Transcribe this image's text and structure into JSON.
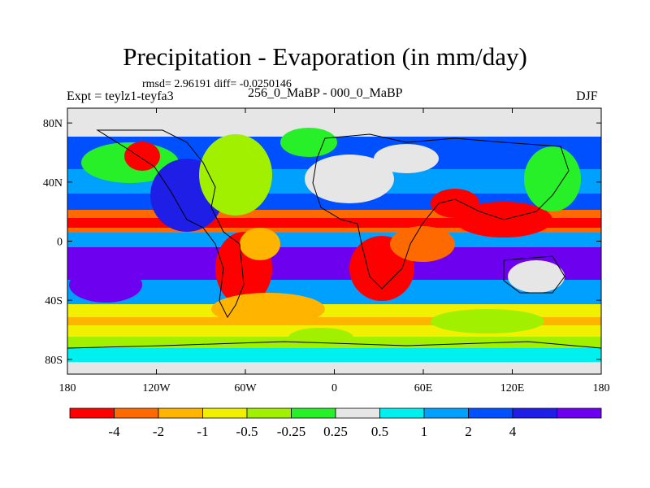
{
  "title": "Precipitation - Evaporation (in mm/day)",
  "stats": "rmsd= 2.96191 diff= -0.0250146",
  "left_label": "Expt = teylz1-teyfa3",
  "center_label": "256_0_MaBP - 000_0_MaBP",
  "right_label": "DJF",
  "y_ticks": [
    {
      "label": "80N",
      "lat": 80
    },
    {
      "label": "40N",
      "lat": 40
    },
    {
      "label": "0",
      "lat": 0
    },
    {
      "label": "40S",
      "lat": -40
    },
    {
      "label": "80S",
      "lat": -80
    }
  ],
  "x_ticks": [
    {
      "label": "180",
      "lon": -180
    },
    {
      "label": "120W",
      "lon": -120
    },
    {
      "label": "60W",
      "lon": -60
    },
    {
      "label": "0",
      "lon": 0
    },
    {
      "label": "60E",
      "lon": 60
    },
    {
      "label": "120E",
      "lon": 120
    },
    {
      "label": "180",
      "lon": 180
    }
  ],
  "colorbar": {
    "colors": [
      "#ff0000",
      "#ff6a00",
      "#ffb400",
      "#f0f000",
      "#a0f000",
      "#28f028",
      "#e6e6e6",
      "#00f0f0",
      "#00a0ff",
      "#0050ff",
      "#1e1ee6",
      "#6e00f0"
    ],
    "labels": [
      "-4",
      "-2",
      "-1",
      "-0.5",
      "-0.25",
      "0.25",
      "0.5",
      "1",
      "2",
      "4"
    ]
  },
  "colors": {
    "ocean": "#6e00f0",
    "land": "#e6e6e6"
  }
}
